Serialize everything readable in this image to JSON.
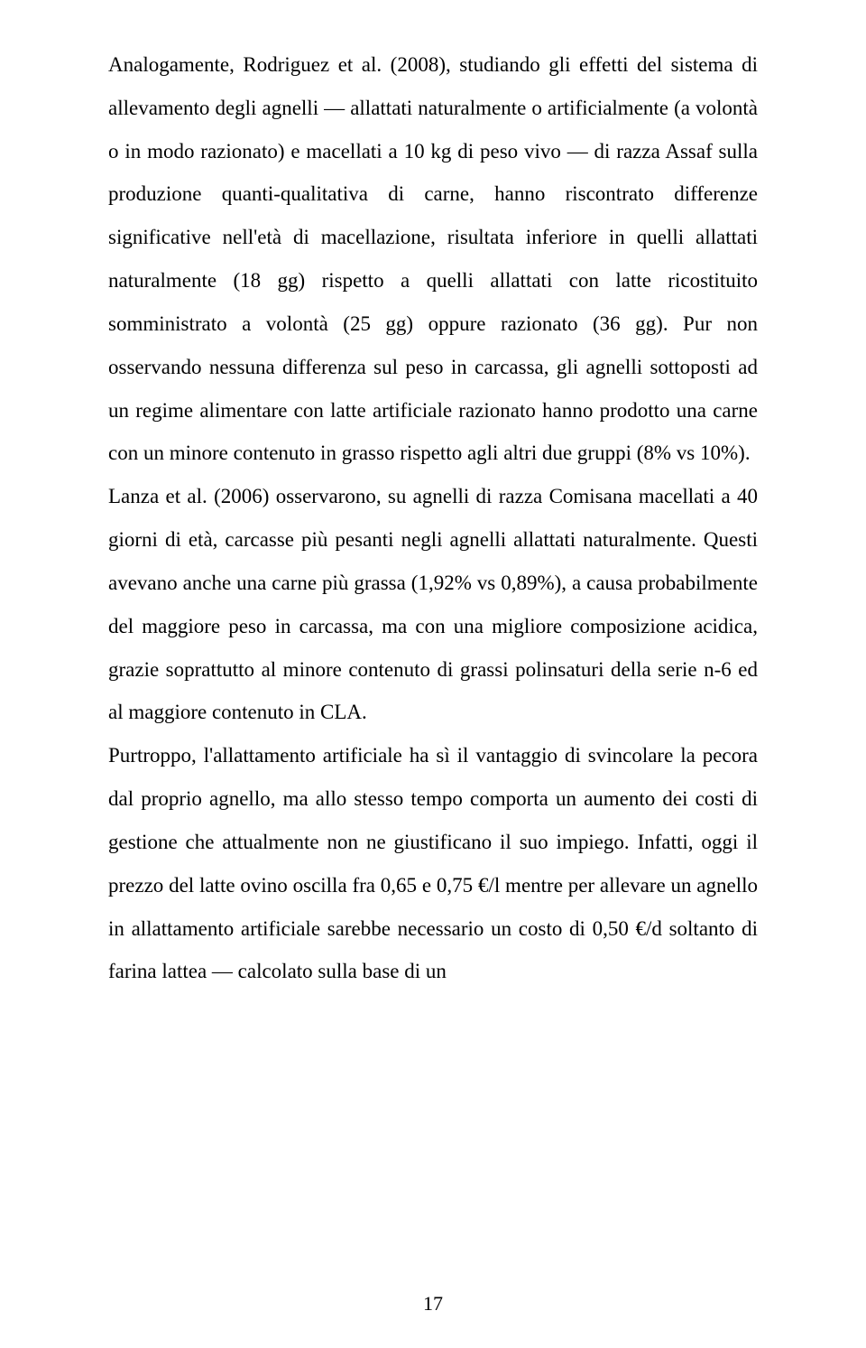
{
  "page": {
    "number": "17",
    "body": "Analogamente, Rodriguez et al. (2008), studiando gli effetti del sistema di allevamento degli agnelli — allattati naturalmente o artificialmente (a volontà o in modo razionato) e macellati a 10 kg di peso vivo — di razza Assaf sulla produzione quanti-qualitativa di carne, hanno riscontrato differenze significative nell'età di macellazione, risultata inferiore in quelli allattati naturalmente (18 gg) rispetto a quelli allattati con latte ricostituito somministrato a volontà (25 gg) oppure razionato (36 gg). Pur non osservando nessuna differenza sul peso in carcassa, gli agnelli sottoposti ad un regime alimentare con latte artificiale razionato hanno prodotto una carne con un minore contenuto in grasso rispetto agli altri due gruppi (8% vs 10%).\nLanza et al. (2006) osservarono, su agnelli di razza Comisana macellati a 40 giorni di età, carcasse più pesanti negli agnelli allattati naturalmente. Questi avevano anche una carne più grassa (1,92% vs 0,89%), a causa probabilmente del maggiore peso in carcassa, ma con una migliore composizione acidica, grazie soprattutto al minore contenuto di grassi polinsaturi della serie n-6 ed al maggiore contenuto in CLA.\nPurtroppo, l'allattamento artificiale ha sì il vantaggio di svincolare la pecora dal proprio agnello, ma allo stesso tempo comporta un aumento dei costi di gestione che attualmente non ne giustificano il suo impiego. Infatti, oggi il prezzo del latte ovino oscilla fra 0,65 e 0,75 €/l mentre per allevare un agnello in allattamento artificiale sarebbe necessario un costo di 0,50 €/d soltanto di farina lattea — calcolato sulla base di un"
  }
}
